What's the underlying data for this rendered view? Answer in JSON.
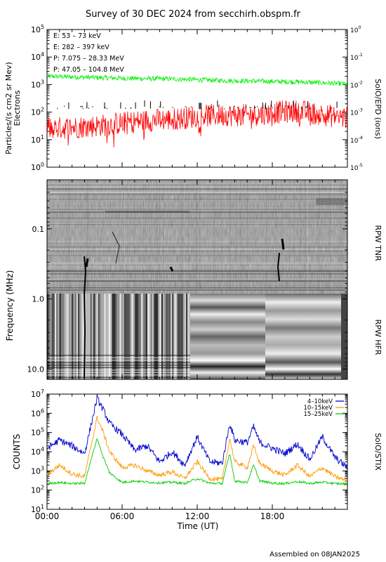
{
  "header": {
    "title": "Survey of 30 DEC 2024 from secchirh.obspm.fr",
    "footer": "Assembled on 08JAN2025"
  },
  "chart_data": [
    {
      "type": "line",
      "panel": "epd",
      "ylabel": "Particles/(s cm2 sr Mev)",
      "ylabel2": "Electrons",
      "right_label": "SolO/EPD (ions)",
      "y_scale": "log",
      "y_ticks": [
        "10^0",
        "10^1",
        "10^2",
        "10^3",
        "10^4",
        "10^5"
      ],
      "y2_ticks": [
        "10^-5",
        "10^-4",
        "10^-3",
        "10^-2",
        "10^-1",
        "10^0"
      ],
      "ylim": [
        1,
        100000
      ],
      "legend_position": "top-left",
      "series": [
        {
          "name": "E: 53 – 73 keV",
          "color": "#00ee00",
          "x": [
            0,
            2,
            4,
            6,
            8,
            10,
            12,
            14,
            16,
            18,
            20,
            22,
            24
          ],
          "values": [
            2000,
            1900,
            1800,
            1700,
            1650,
            1600,
            1500,
            1400,
            1350,
            1300,
            1250,
            1150,
            1050
          ]
        },
        {
          "name": "E: 282 – 397 keV",
          "color": "#ff0000",
          "x": [
            0,
            2,
            4,
            6,
            8,
            10,
            12,
            14,
            16,
            18,
            20,
            22,
            24
          ],
          "values": [
            25,
            28,
            32,
            40,
            50,
            55,
            70,
            80,
            75,
            95,
            110,
            80,
            60
          ]
        },
        {
          "name": "P: 7.075 – 28.33 MeV",
          "color": "#000000",
          "x": [],
          "values": []
        },
        {
          "name": "P: 47.05 – 104.8 MeV",
          "color": "#0000cc",
          "x": [],
          "values": []
        }
      ]
    },
    {
      "type": "heatmap",
      "panel": "rpw",
      "ylabel": "Frequency (MHz)",
      "y_scale": "log",
      "y_ticks": [
        "0.1",
        "1.0",
        "10.0"
      ],
      "ylim": [
        0.02,
        14
      ],
      "right_label_top": "RPW TNR",
      "right_label_bottom": "RPW HFR",
      "colormap": "grayscale"
    },
    {
      "type": "line",
      "panel": "stix",
      "ylabel": "COUNTS",
      "right_label": "SolO/STIX",
      "xlabel": "Time (UT)",
      "x_ticks": [
        "00:00",
        "06:00",
        "12:00",
        "18:00"
      ],
      "xlim": [
        0,
        24
      ],
      "y_scale": "log",
      "y_ticks": [
        "10^1",
        "10^2",
        "10^3",
        "10^4",
        "10^5",
        "10^6",
        "10^7"
      ],
      "ylim": [
        10,
        10000000
      ],
      "legend_position": "top-right",
      "series": [
        {
          "name": "4–10keV",
          "color": "#0000cc",
          "x": [
            0,
            1,
            2,
            3,
            4,
            4.5,
            5,
            6,
            7,
            8,
            9,
            10,
            11,
            12,
            13,
            14,
            14.6,
            15,
            16,
            16.5,
            17,
            18,
            19,
            20,
            21,
            22,
            23,
            24
          ],
          "values": [
            15000,
            40000,
            20000,
            8000,
            6000000,
            1500000,
            300000,
            80000,
            12000,
            20000,
            3000,
            10000,
            2000,
            60000,
            3000,
            2500,
            300000,
            40000,
            30000,
            200000,
            30000,
            15000,
            8000,
            25000,
            4000,
            60000,
            5000,
            1500
          ]
        },
        {
          "name": "10–15keV",
          "color": "#ff9900",
          "x": [
            0,
            1,
            2,
            3,
            4,
            4.5,
            5,
            6,
            7,
            8,
            9,
            10,
            11,
            12,
            13,
            14,
            14.6,
            15,
            16,
            16.5,
            17,
            18,
            19,
            20,
            21,
            22,
            23,
            24
          ],
          "values": [
            600,
            2000,
            700,
            500,
            600000,
            100000,
            10000,
            1500,
            2000,
            1000,
            600,
            900,
            400,
            3000,
            400,
            350,
            50000,
            3000,
            1500,
            20000,
            2500,
            1000,
            600,
            2000,
            500,
            1500,
            500,
            300
          ]
        },
        {
          "name": "15–25keV",
          "color": "#00cc00",
          "x": [
            0,
            1,
            2,
            3,
            4,
            4.5,
            5,
            6,
            7,
            8,
            9,
            10,
            11,
            12,
            13,
            14,
            14.6,
            15,
            16,
            16.5,
            17,
            18,
            19,
            20,
            21,
            22,
            23,
            24
          ],
          "values": [
            220,
            250,
            220,
            230,
            50000,
            5000,
            800,
            250,
            300,
            260,
            240,
            260,
            220,
            400,
            230,
            220,
            8000,
            300,
            250,
            2000,
            300,
            230,
            220,
            280,
            220,
            260,
            220,
            210
          ]
        }
      ]
    }
  ]
}
